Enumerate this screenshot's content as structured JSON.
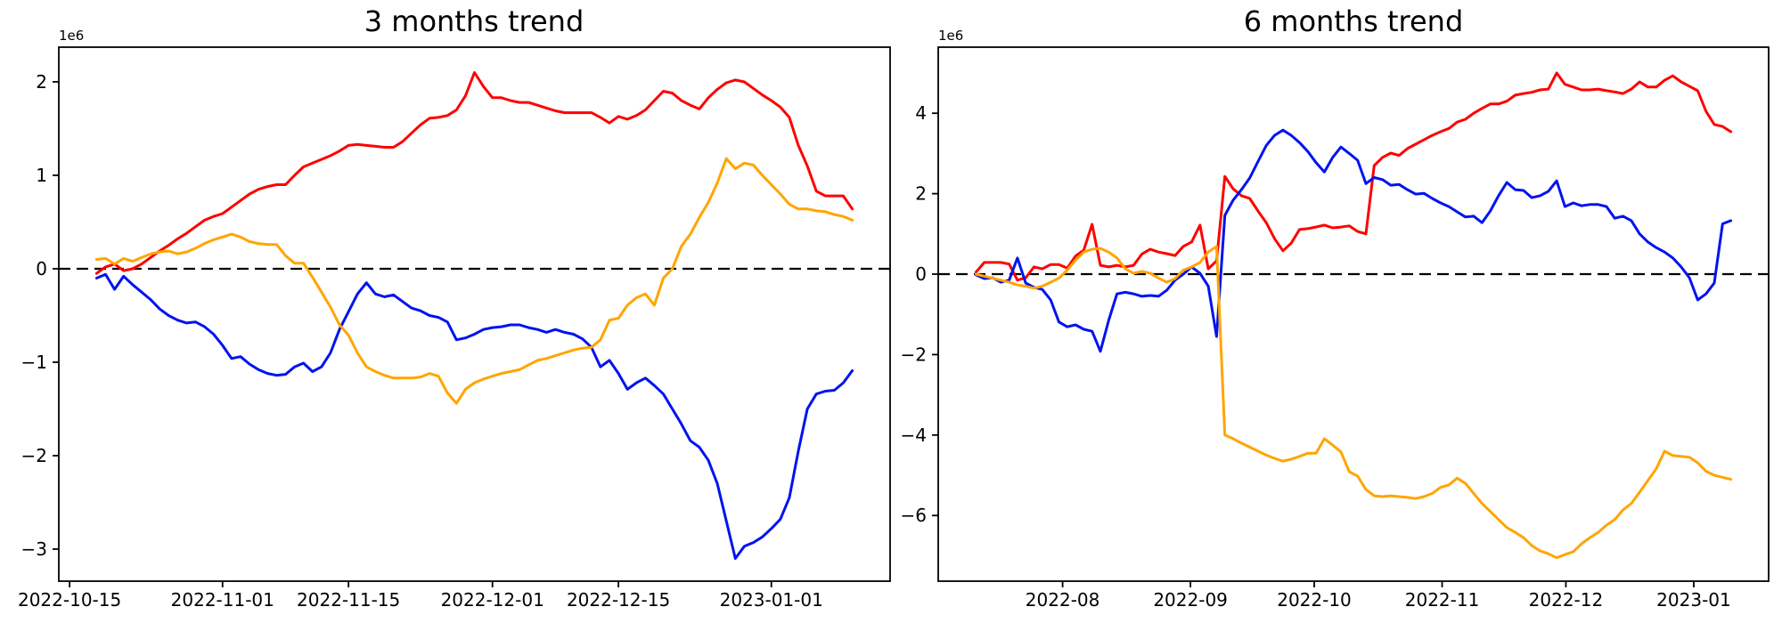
{
  "page": {
    "background": "#ffffff"
  },
  "chart_data": [
    {
      "type": "line",
      "title": "3 months trend",
      "offset_label": "1e6",
      "xlabel": "",
      "ylabel": "",
      "grid": false,
      "legend": null,
      "zero_line": {
        "style": "dashed",
        "color": "#000000"
      },
      "x_start": "2022-10-18",
      "x_end": "2023-01-10",
      "data_span_days": 84,
      "xlim_days": [
        -4.2,
        88.2
      ],
      "ylim": [
        -3.343,
        2.371
      ],
      "y_scale_note": "values in units of 1e6",
      "yticks": [
        {
          "value": 2,
          "label": "2"
        },
        {
          "value": 1,
          "label": "1"
        },
        {
          "value": 0,
          "label": "0"
        },
        {
          "value": -1,
          "label": "−1"
        },
        {
          "value": -2,
          "label": "−2"
        },
        {
          "value": -3,
          "label": "−3"
        }
      ],
      "xticks": [
        {
          "day": -3,
          "label": "2022-10-15"
        },
        {
          "day": 14,
          "label": "2022-11-01"
        },
        {
          "day": 28,
          "label": "2022-11-15"
        },
        {
          "day": 44,
          "label": "2022-12-01"
        },
        {
          "day": 58,
          "label": "2022-12-15"
        },
        {
          "day": 75,
          "label": "2023-01-01"
        }
      ],
      "series": [
        {
          "name": "red",
          "color": "#ff0000",
          "values": [
            -0.05,
            0.02,
            0.05,
            -0.02,
            0.0,
            0.05,
            0.12,
            0.19,
            0.25,
            0.32,
            0.38,
            0.45,
            0.52,
            0.56,
            0.59,
            0.66,
            0.73,
            0.8,
            0.85,
            0.88,
            0.9,
            0.9,
            1.0,
            1.09,
            1.13,
            1.17,
            1.21,
            1.26,
            1.32,
            1.33,
            1.32,
            1.31,
            1.3,
            1.3,
            1.36,
            1.45,
            1.54,
            1.61,
            1.62,
            1.64,
            1.7,
            1.85,
            2.1,
            1.95,
            1.83,
            1.83,
            1.8,
            1.78,
            1.78,
            1.75,
            1.72,
            1.69,
            1.67,
            1.67,
            1.67,
            1.67,
            1.62,
            1.56,
            1.63,
            1.6,
            1.64,
            1.7,
            1.8,
            1.9,
            1.88,
            1.8,
            1.75,
            1.71,
            1.83,
            1.92,
            1.99,
            2.02,
            2.0,
            1.93,
            1.86,
            1.8,
            1.73,
            1.62,
            1.32,
            1.1,
            0.83,
            0.78,
            0.78,
            0.78,
            0.64
          ]
        },
        {
          "name": "blue",
          "color": "#0013f0",
          "values": [
            -0.1,
            -0.06,
            -0.22,
            -0.08,
            -0.17,
            -0.25,
            -0.33,
            -0.43,
            -0.5,
            -0.55,
            -0.58,
            -0.57,
            -0.62,
            -0.7,
            -0.82,
            -0.96,
            -0.94,
            -1.02,
            -1.08,
            -1.12,
            -1.14,
            -1.13,
            -1.05,
            -1.01,
            -1.1,
            -1.05,
            -0.9,
            -0.65,
            -0.46,
            -0.27,
            -0.15,
            -0.27,
            -0.3,
            -0.28,
            -0.35,
            -0.42,
            -0.45,
            -0.5,
            -0.52,
            -0.57,
            -0.76,
            -0.74,
            -0.7,
            -0.65,
            -0.63,
            -0.62,
            -0.6,
            -0.6,
            -0.63,
            -0.65,
            -0.68,
            -0.65,
            -0.68,
            -0.7,
            -0.75,
            -0.84,
            -1.05,
            -0.98,
            -1.12,
            -1.29,
            -1.22,
            -1.17,
            -1.25,
            -1.34,
            -1.5,
            -1.66,
            -1.84,
            -1.91,
            -2.05,
            -2.3,
            -2.7,
            -3.1,
            -2.97,
            -2.93,
            -2.87,
            -2.78,
            -2.68,
            -2.45,
            -1.95,
            -1.5,
            -1.34,
            -1.31,
            -1.3,
            -1.22,
            -1.09
          ]
        },
        {
          "name": "orange",
          "color": "#ffa500",
          "values": [
            0.1,
            0.11,
            0.05,
            0.11,
            0.08,
            0.12,
            0.16,
            0.18,
            0.19,
            0.16,
            0.18,
            0.22,
            0.27,
            0.31,
            0.34,
            0.37,
            0.34,
            0.29,
            0.27,
            0.26,
            0.26,
            0.14,
            0.06,
            0.06,
            -0.09,
            -0.25,
            -0.41,
            -0.6,
            -0.71,
            -0.9,
            -1.05,
            -1.1,
            -1.14,
            -1.17,
            -1.17,
            -1.17,
            -1.16,
            -1.12,
            -1.15,
            -1.33,
            -1.44,
            -1.29,
            -1.22,
            -1.18,
            -1.15,
            -1.12,
            -1.1,
            -1.08,
            -1.03,
            -0.98,
            -0.96,
            -0.93,
            -0.9,
            -0.87,
            -0.85,
            -0.84,
            -0.76,
            -0.55,
            -0.53,
            -0.39,
            -0.31,
            -0.27,
            -0.39,
            -0.1,
            0.0,
            0.24,
            0.37,
            0.55,
            0.71,
            0.92,
            1.18,
            1.07,
            1.13,
            1.11,
            1.0,
            0.9,
            0.8,
            0.69,
            0.64,
            0.64,
            0.62,
            0.61,
            0.58,
            0.56,
            0.52
          ]
        }
      ]
    },
    {
      "type": "line",
      "title": "6 months trend",
      "offset_label": "1e6",
      "xlabel": "",
      "ylabel": "",
      "grid": false,
      "legend": null,
      "zero_line": {
        "style": "dashed",
        "color": "#000000"
      },
      "x_start": "2022-07-11",
      "x_end": "2023-01-10",
      "data_span_days": 183,
      "xlim_days": [
        -9.15,
        192.15
      ],
      "ylim": [
        -7.632,
        5.642
      ],
      "y_scale_note": "values in units of 1e6",
      "yticks": [
        {
          "value": 4,
          "label": "4"
        },
        {
          "value": 2,
          "label": "2"
        },
        {
          "value": 0,
          "label": "0"
        },
        {
          "value": -2,
          "label": "−2"
        },
        {
          "value": -4,
          "label": "−4"
        },
        {
          "value": -6,
          "label": "−6"
        }
      ],
      "xticks": [
        {
          "day": 21,
          "label": "2022-08"
        },
        {
          "day": 52,
          "label": "2022-09"
        },
        {
          "day": 82,
          "label": "2022-10"
        },
        {
          "day": 113,
          "label": "2022-11"
        },
        {
          "day": 143,
          "label": "2022-12"
        },
        {
          "day": 174,
          "label": "2023-01"
        }
      ],
      "series": [
        {
          "name": "red",
          "color": "#ff0000",
          "values": [
            0.05,
            0.29,
            0.29,
            0.29,
            0.25,
            -0.15,
            -0.09,
            0.18,
            0.13,
            0.24,
            0.24,
            0.15,
            0.45,
            0.6,
            1.24,
            0.22,
            0.18,
            0.22,
            0.18,
            0.22,
            0.5,
            0.62,
            0.55,
            0.51,
            0.46,
            0.69,
            0.8,
            1.22,
            0.13,
            0.33,
            2.43,
            2.12,
            1.95,
            1.88,
            1.57,
            1.28,
            0.88,
            0.58,
            0.77,
            1.11,
            1.13,
            1.17,
            1.22,
            1.15,
            1.17,
            1.2,
            1.06,
            1.0,
            2.7,
            2.9,
            3.01,
            2.95,
            3.12,
            3.23,
            3.34,
            3.45,
            3.54,
            3.62,
            3.78,
            3.85,
            4.0,
            4.12,
            4.23,
            4.23,
            4.3,
            4.45,
            4.49,
            4.52,
            4.58,
            4.6,
            5.0,
            4.72,
            4.65,
            4.58,
            4.58,
            4.6,
            4.56,
            4.53,
            4.49,
            4.6,
            4.78,
            4.65,
            4.65,
            4.82,
            4.93,
            4.78,
            4.67,
            4.56,
            4.05,
            3.72,
            3.67,
            3.54
          ]
        },
        {
          "name": "blue",
          "color": "#0013f0",
          "values": [
            -0.02,
            -0.11,
            -0.09,
            -0.2,
            -0.15,
            0.4,
            -0.22,
            -0.33,
            -0.38,
            -0.64,
            -1.19,
            -1.31,
            -1.26,
            -1.37,
            -1.42,
            -1.92,
            -1.15,
            -0.49,
            -0.45,
            -0.49,
            -0.55,
            -0.53,
            -0.55,
            -0.4,
            -0.15,
            0.0,
            0.18,
            0.02,
            -0.3,
            -1.55,
            1.46,
            1.84,
            2.1,
            2.39,
            2.8,
            3.2,
            3.45,
            3.58,
            3.45,
            3.27,
            3.05,
            2.77,
            2.54,
            2.9,
            3.16,
            3.0,
            2.83,
            2.25,
            2.4,
            2.35,
            2.21,
            2.23,
            2.1,
            1.99,
            2.01,
            1.88,
            1.77,
            1.68,
            1.55,
            1.42,
            1.44,
            1.28,
            1.57,
            1.95,
            2.28,
            2.1,
            2.08,
            1.9,
            1.95,
            2.06,
            2.32,
            1.68,
            1.77,
            1.7,
            1.73,
            1.73,
            1.68,
            1.39,
            1.44,
            1.33,
            1.0,
            0.8,
            0.66,
            0.55,
            0.4,
            0.18,
            -0.09,
            -0.64,
            -0.49,
            -0.22,
            1.25,
            1.33
          ]
        },
        {
          "name": "orange",
          "color": "#ffa500",
          "values": [
            0.0,
            -0.05,
            -0.1,
            -0.15,
            -0.2,
            -0.27,
            -0.3,
            -0.35,
            -0.3,
            -0.2,
            -0.1,
            0.1,
            0.35,
            0.55,
            0.62,
            0.64,
            0.55,
            0.4,
            0.13,
            0.02,
            0.07,
            0.02,
            -0.1,
            -0.2,
            -0.11,
            0.1,
            0.18,
            0.29,
            0.55,
            0.69,
            -4.0,
            -4.09,
            -4.2,
            -4.3,
            -4.4,
            -4.5,
            -4.58,
            -4.65,
            -4.6,
            -4.53,
            -4.45,
            -4.45,
            -4.09,
            -4.25,
            -4.42,
            -4.91,
            -5.02,
            -5.35,
            -5.51,
            -5.53,
            -5.51,
            -5.53,
            -5.55,
            -5.58,
            -5.53,
            -5.45,
            -5.3,
            -5.24,
            -5.07,
            -5.2,
            -5.45,
            -5.7,
            -5.9,
            -6.1,
            -6.3,
            -6.42,
            -6.55,
            -6.75,
            -6.88,
            -6.95,
            -7.05,
            -6.97,
            -6.9,
            -6.7,
            -6.55,
            -6.42,
            -6.24,
            -6.1,
            -5.86,
            -5.7,
            -5.42,
            -5.13,
            -4.84,
            -4.4,
            -4.51,
            -4.53,
            -4.55,
            -4.69,
            -4.9,
            -5.0,
            -5.05,
            -5.1
          ]
        }
      ]
    }
  ]
}
